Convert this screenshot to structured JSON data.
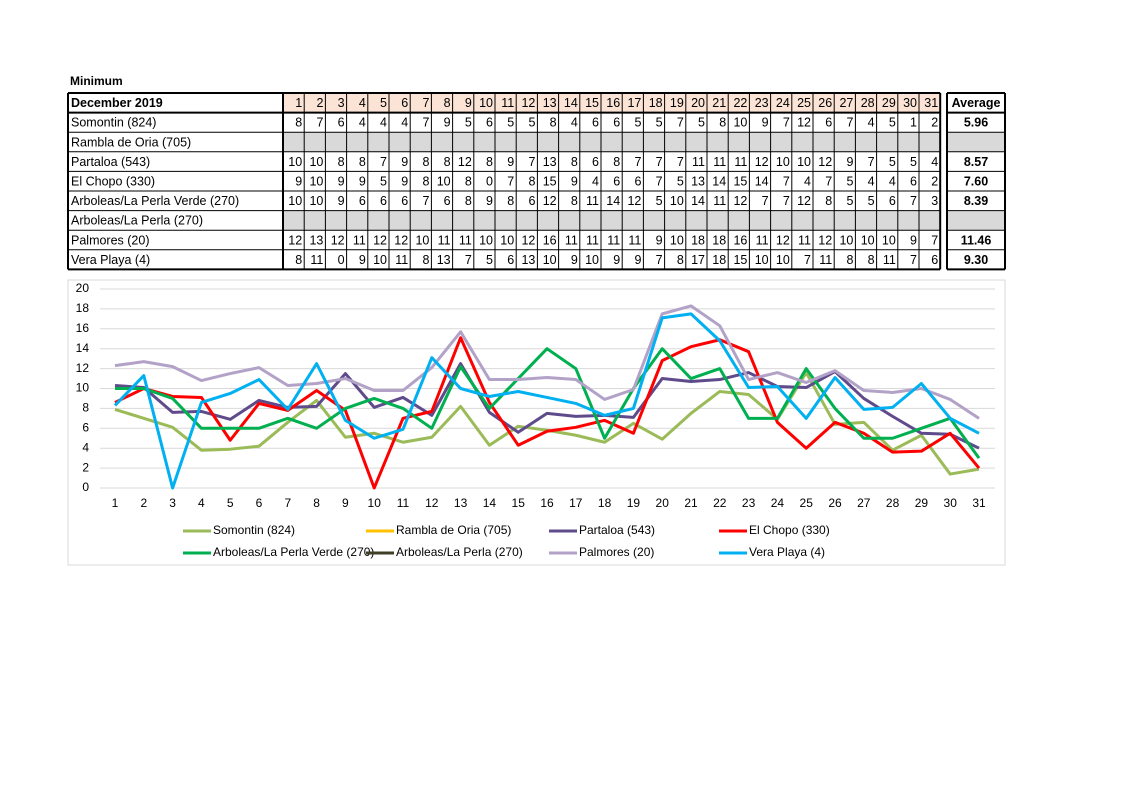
{
  "title": "Minimum",
  "table": {
    "corner": "December  2019",
    "days": [
      1,
      2,
      3,
      4,
      5,
      6,
      7,
      8,
      9,
      10,
      11,
      12,
      13,
      14,
      15,
      16,
      17,
      18,
      19,
      20,
      21,
      22,
      23,
      24,
      25,
      26,
      27,
      28,
      29,
      30,
      31
    ],
    "average_header": "Average",
    "rows": [
      {
        "label": "Somontin (824)",
        "values": [
          8,
          7,
          6,
          4,
          4,
          4,
          7,
          9,
          5,
          6,
          5,
          5,
          8,
          4,
          6,
          6,
          5,
          5,
          7,
          5,
          8,
          10,
          9,
          7,
          12,
          6,
          7,
          4,
          5,
          1,
          2
        ],
        "average": "5.96"
      },
      {
        "label": "Rambla de Oria (705)",
        "values": [
          null,
          null,
          null,
          null,
          null,
          null,
          null,
          null,
          null,
          null,
          null,
          null,
          null,
          null,
          null,
          null,
          null,
          null,
          null,
          null,
          null,
          null,
          null,
          null,
          null,
          null,
          null,
          null,
          null,
          null,
          null
        ],
        "average": null
      },
      {
        "label": "Partaloa (543)",
        "values": [
          10,
          10,
          8,
          8,
          7,
          9,
          8,
          8,
          12,
          8,
          9,
          7,
          13,
          8,
          6,
          8,
          7,
          7,
          7,
          11,
          11,
          11,
          12,
          10,
          10,
          12,
          9,
          7,
          5,
          5,
          4
        ],
        "average": "8.57"
      },
      {
        "label": "El Chopo (330)",
        "values": [
          9,
          10,
          9,
          9,
          5,
          9,
          8,
          10,
          8,
          0,
          7,
          8,
          15,
          9,
          4,
          6,
          6,
          7,
          5,
          13,
          14,
          15,
          14,
          7,
          4,
          7,
          5,
          4,
          4,
          6,
          2
        ],
        "average": "7.60"
      },
      {
        "label": "Arboleas/La Perla Verde (270)",
        "values": [
          10,
          10,
          9,
          6,
          6,
          6,
          7,
          6,
          8,
          9,
          8,
          6,
          12,
          8,
          11,
          14,
          12,
          5,
          10,
          14,
          11,
          12,
          7,
          7,
          12,
          8,
          5,
          5,
          6,
          7,
          3
        ],
        "average": "8.39"
      },
      {
        "label": "Arboleas/La Perla (270)",
        "values": [
          null,
          null,
          null,
          null,
          null,
          null,
          null,
          null,
          null,
          null,
          null,
          null,
          null,
          null,
          null,
          null,
          null,
          null,
          null,
          null,
          null,
          null,
          null,
          null,
          null,
          null,
          null,
          null,
          null,
          null,
          null
        ],
        "average": null
      },
      {
        "label": "Palmores (20)",
        "values": [
          12,
          13,
          12,
          11,
          12,
          12,
          10,
          11,
          11,
          10,
          10,
          12,
          16,
          11,
          11,
          11,
          11,
          9,
          10,
          18,
          18,
          16,
          11,
          12,
          11,
          12,
          10,
          10,
          10,
          9,
          7
        ],
        "average": "11.46"
      },
      {
        "label": "Vera Playa (4)",
        "values": [
          8,
          11,
          0,
          9,
          10,
          11,
          8,
          13,
          7,
          5,
          6,
          13,
          10,
          9,
          10,
          9,
          9,
          7,
          8,
          17,
          18,
          15,
          10,
          10,
          7,
          11,
          8,
          8,
          11,
          7,
          6
        ],
        "average": "9.30"
      }
    ]
  },
  "chart_data": {
    "type": "line",
    "categories": [
      1,
      2,
      3,
      4,
      5,
      6,
      7,
      8,
      9,
      10,
      11,
      12,
      13,
      14,
      15,
      16,
      17,
      18,
      19,
      20,
      21,
      22,
      23,
      24,
      25,
      26,
      27,
      28,
      29,
      30,
      31
    ],
    "ylim": [
      0,
      20
    ],
    "yticks": [
      0,
      2,
      4,
      6,
      8,
      10,
      12,
      14,
      16,
      18,
      20
    ],
    "grid": true,
    "legend": "bottom",
    "series": [
      {
        "name": "Somontin (824)",
        "color": "#9bbb59",
        "values": [
          7.9,
          7,
          6.1,
          3.8,
          3.9,
          4.2,
          6.6,
          8.8,
          5.1,
          5.5,
          4.6,
          5.1,
          8.2,
          4.3,
          6.2,
          5.8,
          5.3,
          4.6,
          6.5,
          4.9,
          7.5,
          9.7,
          9.4,
          6.9,
          11.6,
          6.4,
          6.6,
          3.8,
          5.3,
          1.4,
          1.9
        ]
      },
      {
        "name": "Rambla de Oria (705)",
        "color": "#ffc000",
        "values": [
          null,
          null,
          null,
          null,
          null,
          null,
          null,
          null,
          null,
          null,
          null,
          null,
          null,
          null,
          null,
          null,
          null,
          null,
          null,
          null,
          null,
          null,
          null,
          null,
          null,
          null,
          null,
          null,
          null,
          null,
          null
        ]
      },
      {
        "name": "Partaloa (543)",
        "color": "#5f4b8b",
        "values": [
          10.3,
          10.1,
          7.6,
          7.7,
          6.9,
          8.8,
          8.1,
          8.2,
          11.5,
          8.1,
          9.1,
          7.3,
          12.5,
          7.6,
          5.6,
          7.5,
          7.2,
          7.3,
          7.1,
          11,
          10.7,
          10.9,
          11.6,
          10.2,
          10.1,
          11.7,
          9,
          7.2,
          5.5,
          5.4,
          4
        ]
      },
      {
        "name": "El Chopo (330)",
        "color": "#ff0000",
        "values": [
          8.6,
          10,
          9.2,
          9.1,
          4.8,
          8.5,
          7.8,
          9.8,
          7.8,
          0,
          7,
          7.7,
          15.1,
          8.6,
          4.3,
          5.7,
          6.1,
          6.8,
          5.5,
          12.8,
          14.2,
          14.9,
          13.7,
          6.6,
          4,
          6.6,
          5.5,
          3.6,
          3.7,
          5.5,
          2
        ]
      },
      {
        "name": "Arboleas/La Perla Verde (270)",
        "color": "#00b050",
        "values": [
          10,
          10,
          9,
          6,
          6,
          6,
          7,
          6,
          8,
          9,
          8,
          6,
          12.2,
          8,
          11,
          14,
          12,
          5,
          10,
          14,
          11,
          12,
          7,
          7,
          12,
          8,
          5,
          5,
          6,
          7,
          3
        ]
      },
      {
        "name": "Arboleas/La Perla (270)",
        "color": "#3f3f26",
        "values": [
          null,
          null,
          null,
          null,
          null,
          null,
          null,
          null,
          null,
          null,
          null,
          null,
          null,
          null,
          null,
          null,
          null,
          null,
          null,
          null,
          null,
          null,
          null,
          null,
          null,
          null,
          null,
          null,
          null,
          null,
          null
        ]
      },
      {
        "name": "Palmores (20)",
        "color": "#b3a2c7",
        "values": [
          12.3,
          12.7,
          12.2,
          10.8,
          11.5,
          12.1,
          10.3,
          10.5,
          11,
          9.8,
          9.8,
          12.1,
          15.7,
          10.9,
          10.9,
          11.1,
          10.9,
          8.9,
          9.9,
          17.5,
          18.3,
          16.3,
          10.9,
          11.6,
          10.6,
          11.8,
          9.8,
          9.6,
          10,
          8.9,
          7
        ]
      },
      {
        "name": "Vera Playa (4)",
        "color": "#00b0f0",
        "values": [
          8.3,
          11.3,
          0,
          8.6,
          9.5,
          10.9,
          7.9,
          12.5,
          6.8,
          5,
          5.9,
          13.1,
          10,
          9.2,
          9.7,
          9.1,
          8.5,
          7.3,
          8,
          17.1,
          17.5,
          14.8,
          10.1,
          10.2,
          7,
          11.1,
          7.9,
          8.1,
          10.5,
          7,
          5.5
        ]
      }
    ]
  }
}
